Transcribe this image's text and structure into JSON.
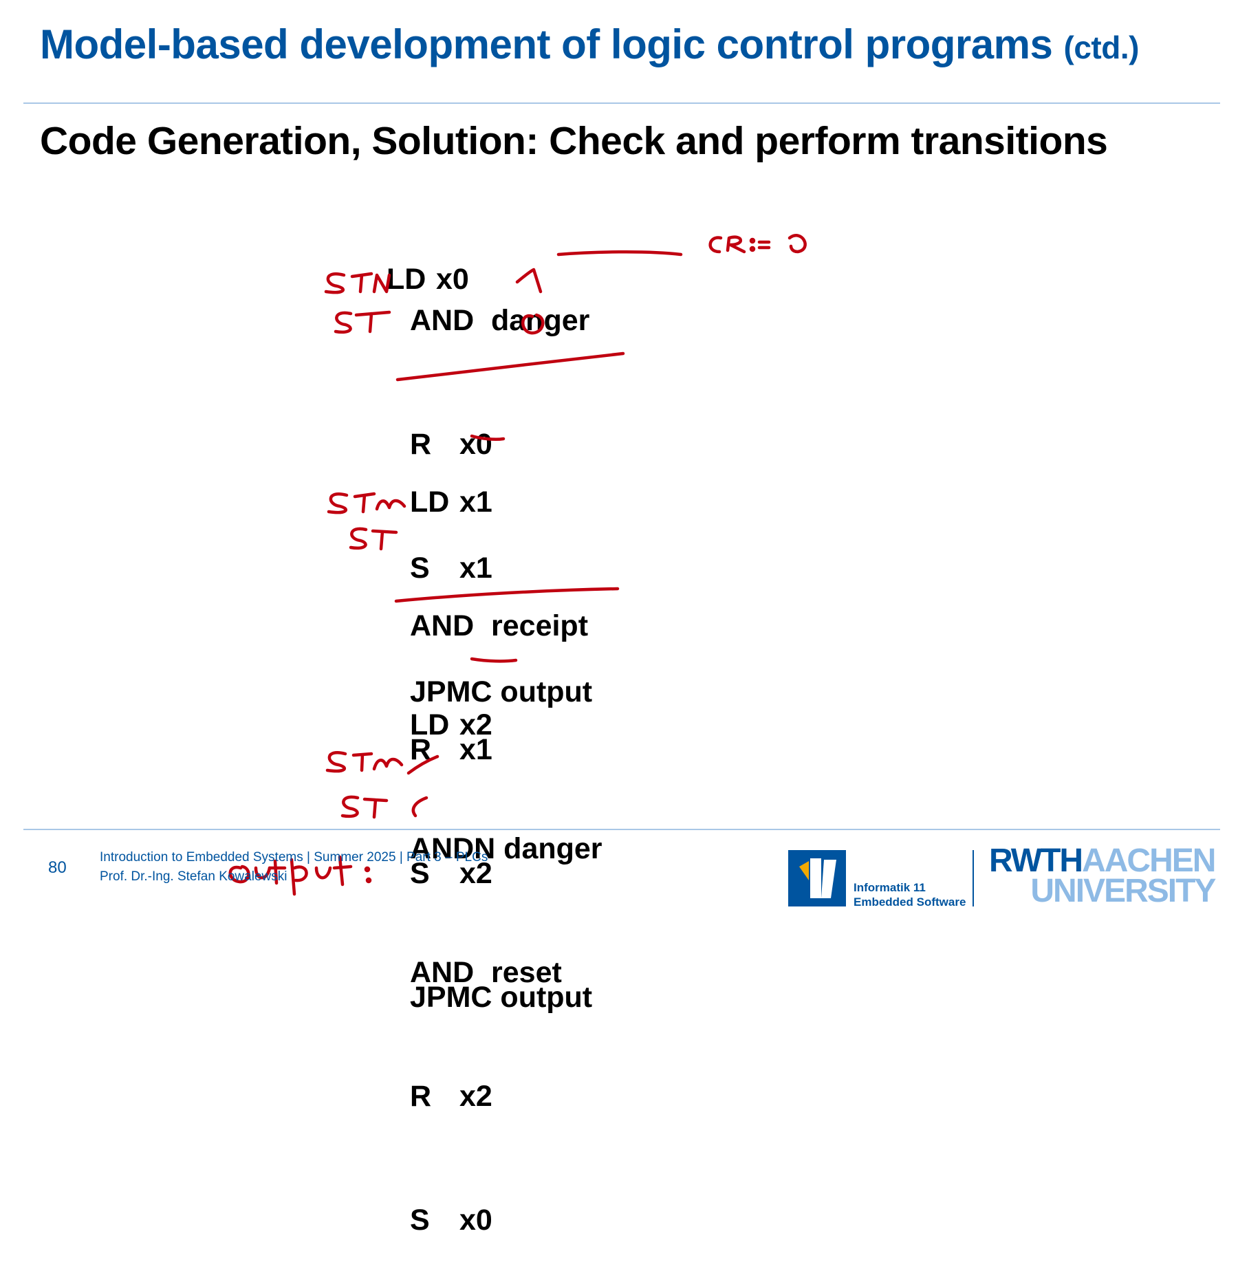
{
  "title": {
    "main": "Model-based development of logic control programs",
    "suffix": "(ctd.)"
  },
  "subtitle": {
    "prefix": "Code Generation, Solution: ",
    "emphasis": "Check and perform transitions"
  },
  "code": {
    "block1": [
      {
        "op": "LD",
        "arg": "x0"
      },
      {
        "op": "AND",
        "arg": "danger"
      },
      {
        "op": "R",
        "arg": "x0"
      },
      {
        "op": "S",
        "arg": "x1"
      },
      {
        "op": "JPMC",
        "arg": "output"
      }
    ],
    "block2": [
      {
        "op": "LD",
        "arg": "x1"
      },
      {
        "op": "AND",
        "arg": "receipt"
      },
      {
        "op": "R",
        "arg": "x1"
      },
      {
        "op": "S",
        "arg": "x2"
      },
      {
        "op": "JPMC",
        "arg": "output"
      }
    ],
    "block3": [
      {
        "op": "LD",
        "arg": "x2"
      },
      {
        "op": "ANDN",
        "arg": "danger"
      },
      {
        "op": "AND",
        "arg": "reset"
      },
      {
        "op": "R",
        "arg": "x2"
      },
      {
        "op": "S",
        "arg": "x0"
      }
    ]
  },
  "footer": {
    "page": "80",
    "course": "Introduction to Embedded Systems | Summer 2025 | Part 3 – PLCs",
    "author": "Prof. Dr.-Ing. Stefan Kowalewski"
  },
  "logos": {
    "institute": [
      "Informatik 11",
      "Embedded Software"
    ],
    "rwth_dark": "RWTH",
    "rwth_light": "AACHEN",
    "rwth_university": "UNIVERSITY"
  },
  "colors": {
    "brand": "#00549f",
    "brand_light": "#8ebae5",
    "ink": "#c00010"
  }
}
